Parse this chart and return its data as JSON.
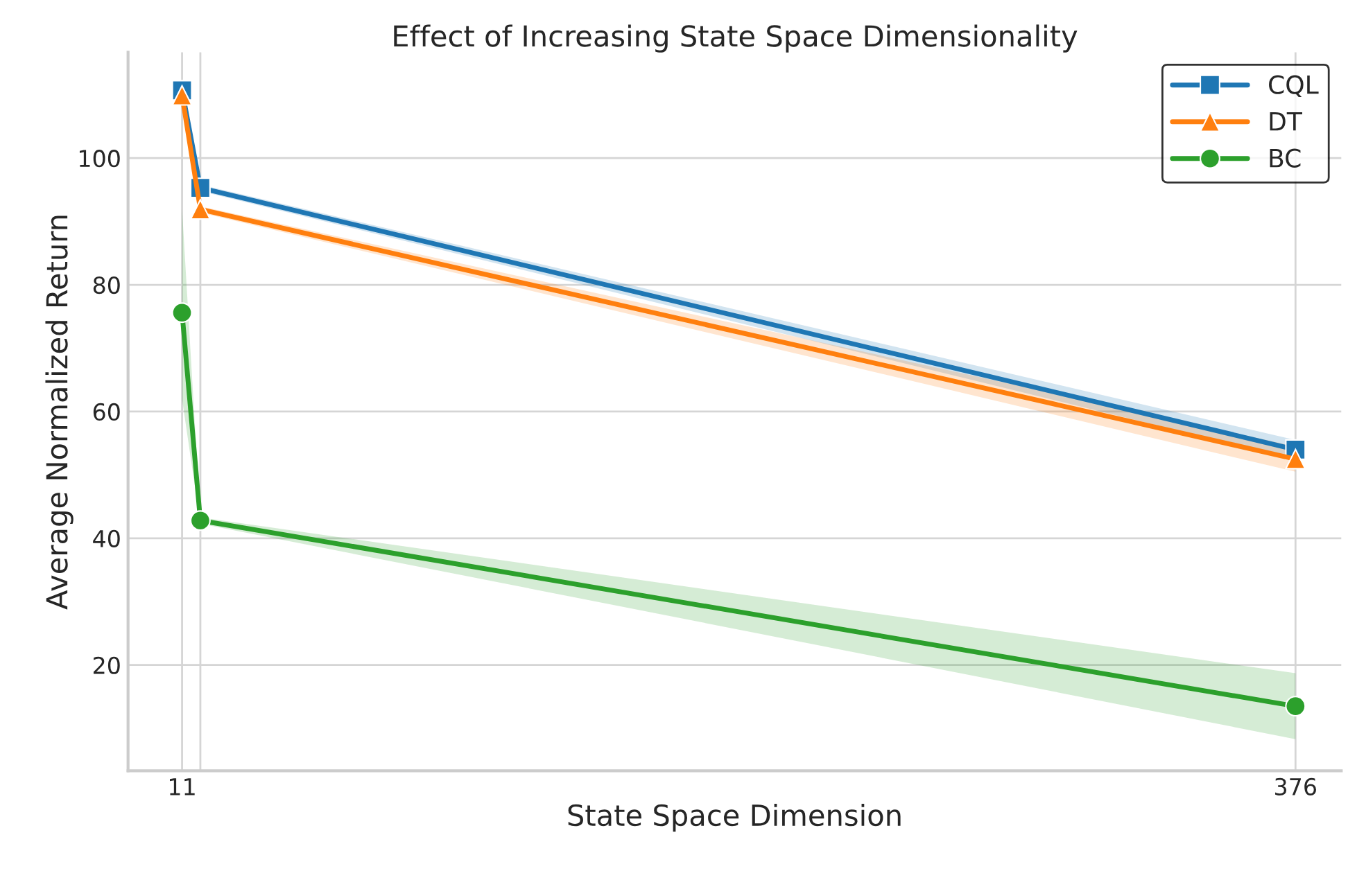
{
  "chart_data": {
    "type": "line",
    "title": "Effect of Increasing State Space Dimensionality",
    "xlabel": "State Space Dimension",
    "ylabel": "Average Normalized Return",
    "x": [
      11,
      17,
      376
    ],
    "series": [
      {
        "name": "CQL",
        "color": "#1f77b4",
        "marker": "square",
        "values": [
          110.7,
          95.3,
          54.0
        ],
        "lower": [
          110.2,
          94.8,
          52.5
        ],
        "upper": [
          111.2,
          95.8,
          55.5
        ]
      },
      {
        "name": "DT",
        "color": "#ff7f0e",
        "marker": "triangle",
        "values": [
          109.9,
          91.9,
          52.5
        ],
        "lower": [
          109.4,
          91.4,
          50.5
        ],
        "upper": [
          110.4,
          92.4,
          54.5
        ]
      },
      {
        "name": "BC",
        "color": "#2ca02c",
        "marker": "circle",
        "values": [
          75.6,
          42.8,
          13.5
        ],
        "lower": [
          62.0,
          42.3,
          8.3
        ],
        "upper": [
          92.0,
          43.3,
          18.7
        ]
      }
    ],
    "xlim": [
      -6.7,
      391
    ],
    "xticks": [
      11,
      {
        "value": 17,
        "label": null
      },
      376
    ],
    "ylim": [
      3.3,
      116.7
    ],
    "yticks": [
      20,
      40,
      60,
      80,
      100
    ],
    "grid": true,
    "legend": "top right",
    "line_style": "solid"
  }
}
